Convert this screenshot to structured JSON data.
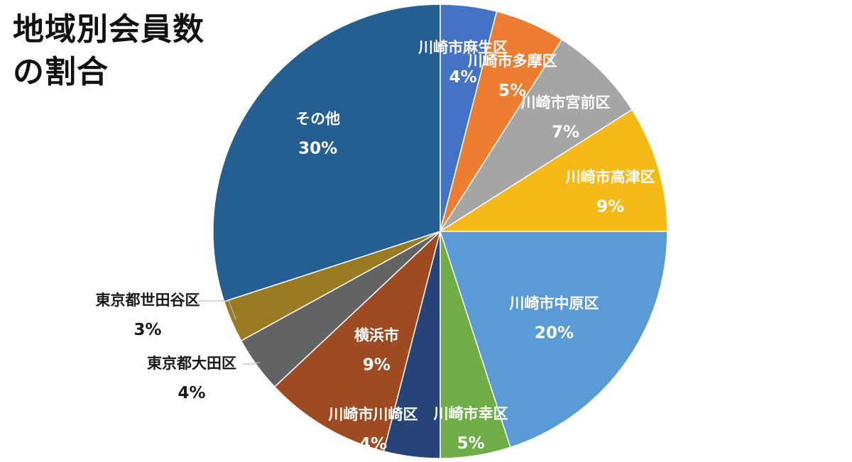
{
  "chart_data": {
    "type": "pie",
    "title_lines": [
      "地域別会員数",
      "の割合"
    ],
    "slices": [
      {
        "label": "川崎市麻生区",
        "value": 4,
        "display": "4%",
        "color": "#4472C4"
      },
      {
        "label": "川崎市多摩区",
        "value": 5,
        "display": "5%",
        "color": "#ED7D31"
      },
      {
        "label": "川崎市宮前区",
        "value": 7,
        "display": "7%",
        "color": "#A5A5A5"
      },
      {
        "label": "川崎市高津区",
        "value": 9,
        "display": "9%",
        "color": "#F5BA18"
      },
      {
        "label": "川崎市中原区",
        "value": 20,
        "display": "20%",
        "color": "#5B9BD5"
      },
      {
        "label": "川崎市幸区",
        "value": 5,
        "display": "5%",
        "color": "#70AD47"
      },
      {
        "label": "川崎市川崎区",
        "value": 4,
        "display": "4%",
        "color": "#264478"
      },
      {
        "label": "横浜市",
        "value": 9,
        "display": "9%",
        "color": "#9E4A22"
      },
      {
        "label": "東京都大田区",
        "value": 4,
        "display": "4%",
        "color": "#636363"
      },
      {
        "label": "東京都世田谷区",
        "value": 3,
        "display": "3%",
        "color": "#997A22"
      },
      {
        "label": "その他",
        "value": 30,
        "display": "30%",
        "color": "#255E91"
      }
    ],
    "start_angle": "12 o'clock",
    "direction": "clockwise",
    "legend": "none",
    "data_labels": "category name and percentage"
  }
}
